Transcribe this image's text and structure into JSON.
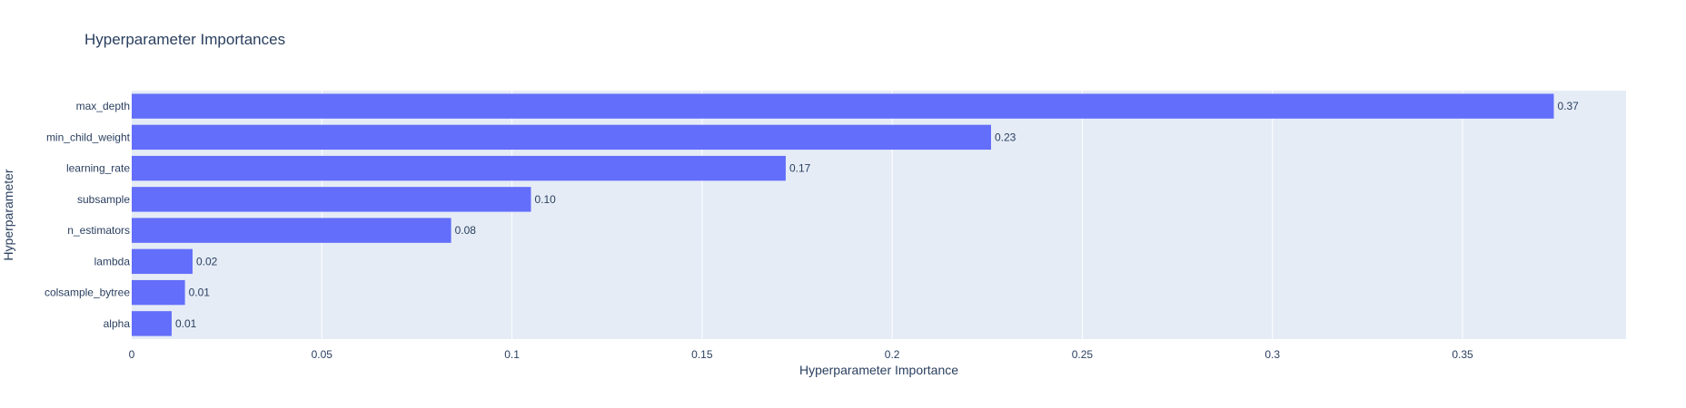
{
  "chart_data": {
    "type": "bar",
    "orientation": "horizontal",
    "title": "Hyperparameter Importances",
    "xlabel": "Hyperparameter Importance",
    "ylabel": "Hyperparameter",
    "xlim": [
      0,
      0.393
    ],
    "xticks": [
      0,
      0.05,
      0.1,
      0.15,
      0.2,
      0.25,
      0.3,
      0.35
    ],
    "xtick_labels": [
      "0",
      "0.05",
      "0.1",
      "0.15",
      "0.2",
      "0.25",
      "0.3",
      "0.35"
    ],
    "grid": true,
    "categories": [
      "max_depth",
      "min_child_weight",
      "learning_rate",
      "subsample",
      "n_estimators",
      "lambda",
      "colsample_bytree",
      "alpha"
    ],
    "values": [
      0.374,
      0.226,
      0.172,
      0.105,
      0.084,
      0.016,
      0.014,
      0.0105
    ],
    "labels": [
      "0.37",
      "0.23",
      "0.17",
      "0.10",
      "0.08",
      "0.02",
      "0.01",
      "0.01"
    ],
    "colors": {
      "bar": "#636efa",
      "plot_background": "#e5ecf6",
      "grid": "#ffffff",
      "text": "#2a3f5f"
    }
  }
}
